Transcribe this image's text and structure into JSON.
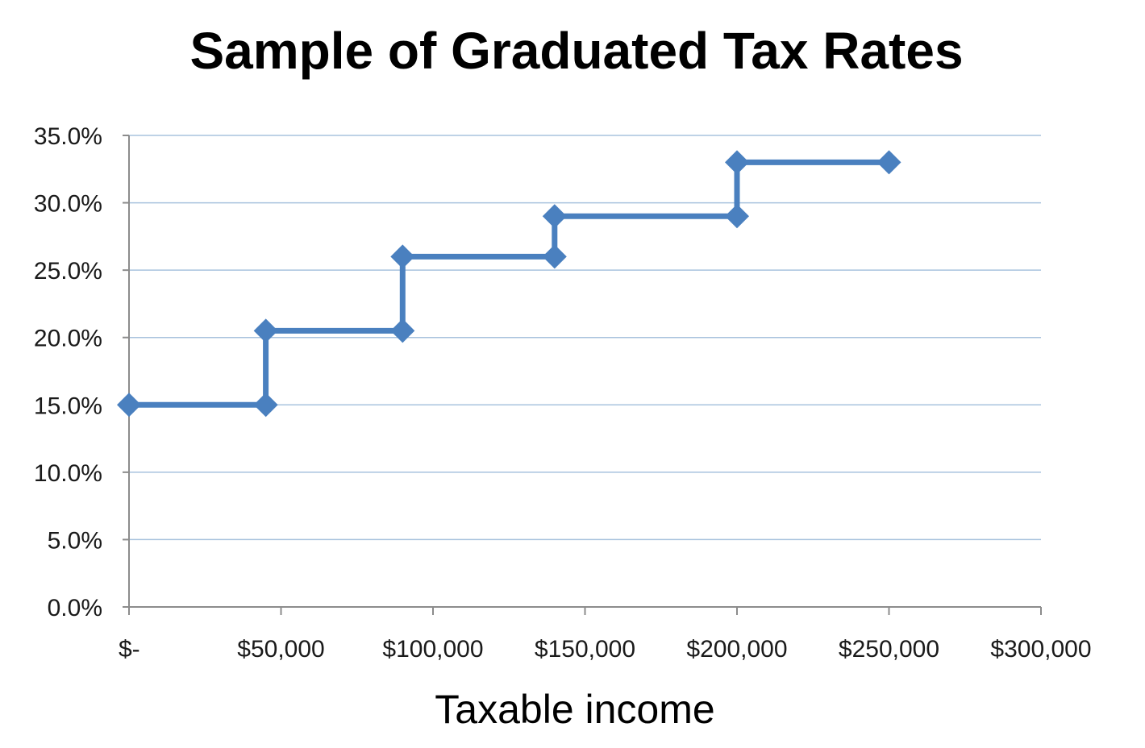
{
  "chart_data": {
    "type": "line",
    "title": "Sample of Graduated Tax Rates",
    "xlabel": "Taxable income",
    "ylabel": "",
    "xlim": [
      0,
      300000
    ],
    "ylim": [
      0,
      0.35
    ],
    "x_ticks": [
      0,
      50000,
      100000,
      150000,
      200000,
      250000,
      300000
    ],
    "x_tick_labels": [
      "$-",
      "$50,000",
      "$100,000",
      "$150,000",
      "$200,000",
      "$250,000",
      "$300,000"
    ],
    "y_ticks": [
      0,
      0.05,
      0.1,
      0.15,
      0.2,
      0.25,
      0.3,
      0.35
    ],
    "y_tick_labels": [
      "0.0%",
      "5.0%",
      "10.0%",
      "15.0%",
      "20.0%",
      "25.0%",
      "30.0%",
      "35.0%"
    ],
    "grid": true,
    "legend": "none",
    "series": [
      {
        "x": [
          0,
          45000,
          45000,
          90000,
          90000,
          140000,
          140000,
          200000,
          200000,
          250000
        ],
        "y": [
          0.15,
          0.15,
          0.205,
          0.205,
          0.26,
          0.26,
          0.29,
          0.29,
          0.33,
          0.33
        ],
        "color": "#4a80bf",
        "marker": "diamond"
      }
    ]
  }
}
